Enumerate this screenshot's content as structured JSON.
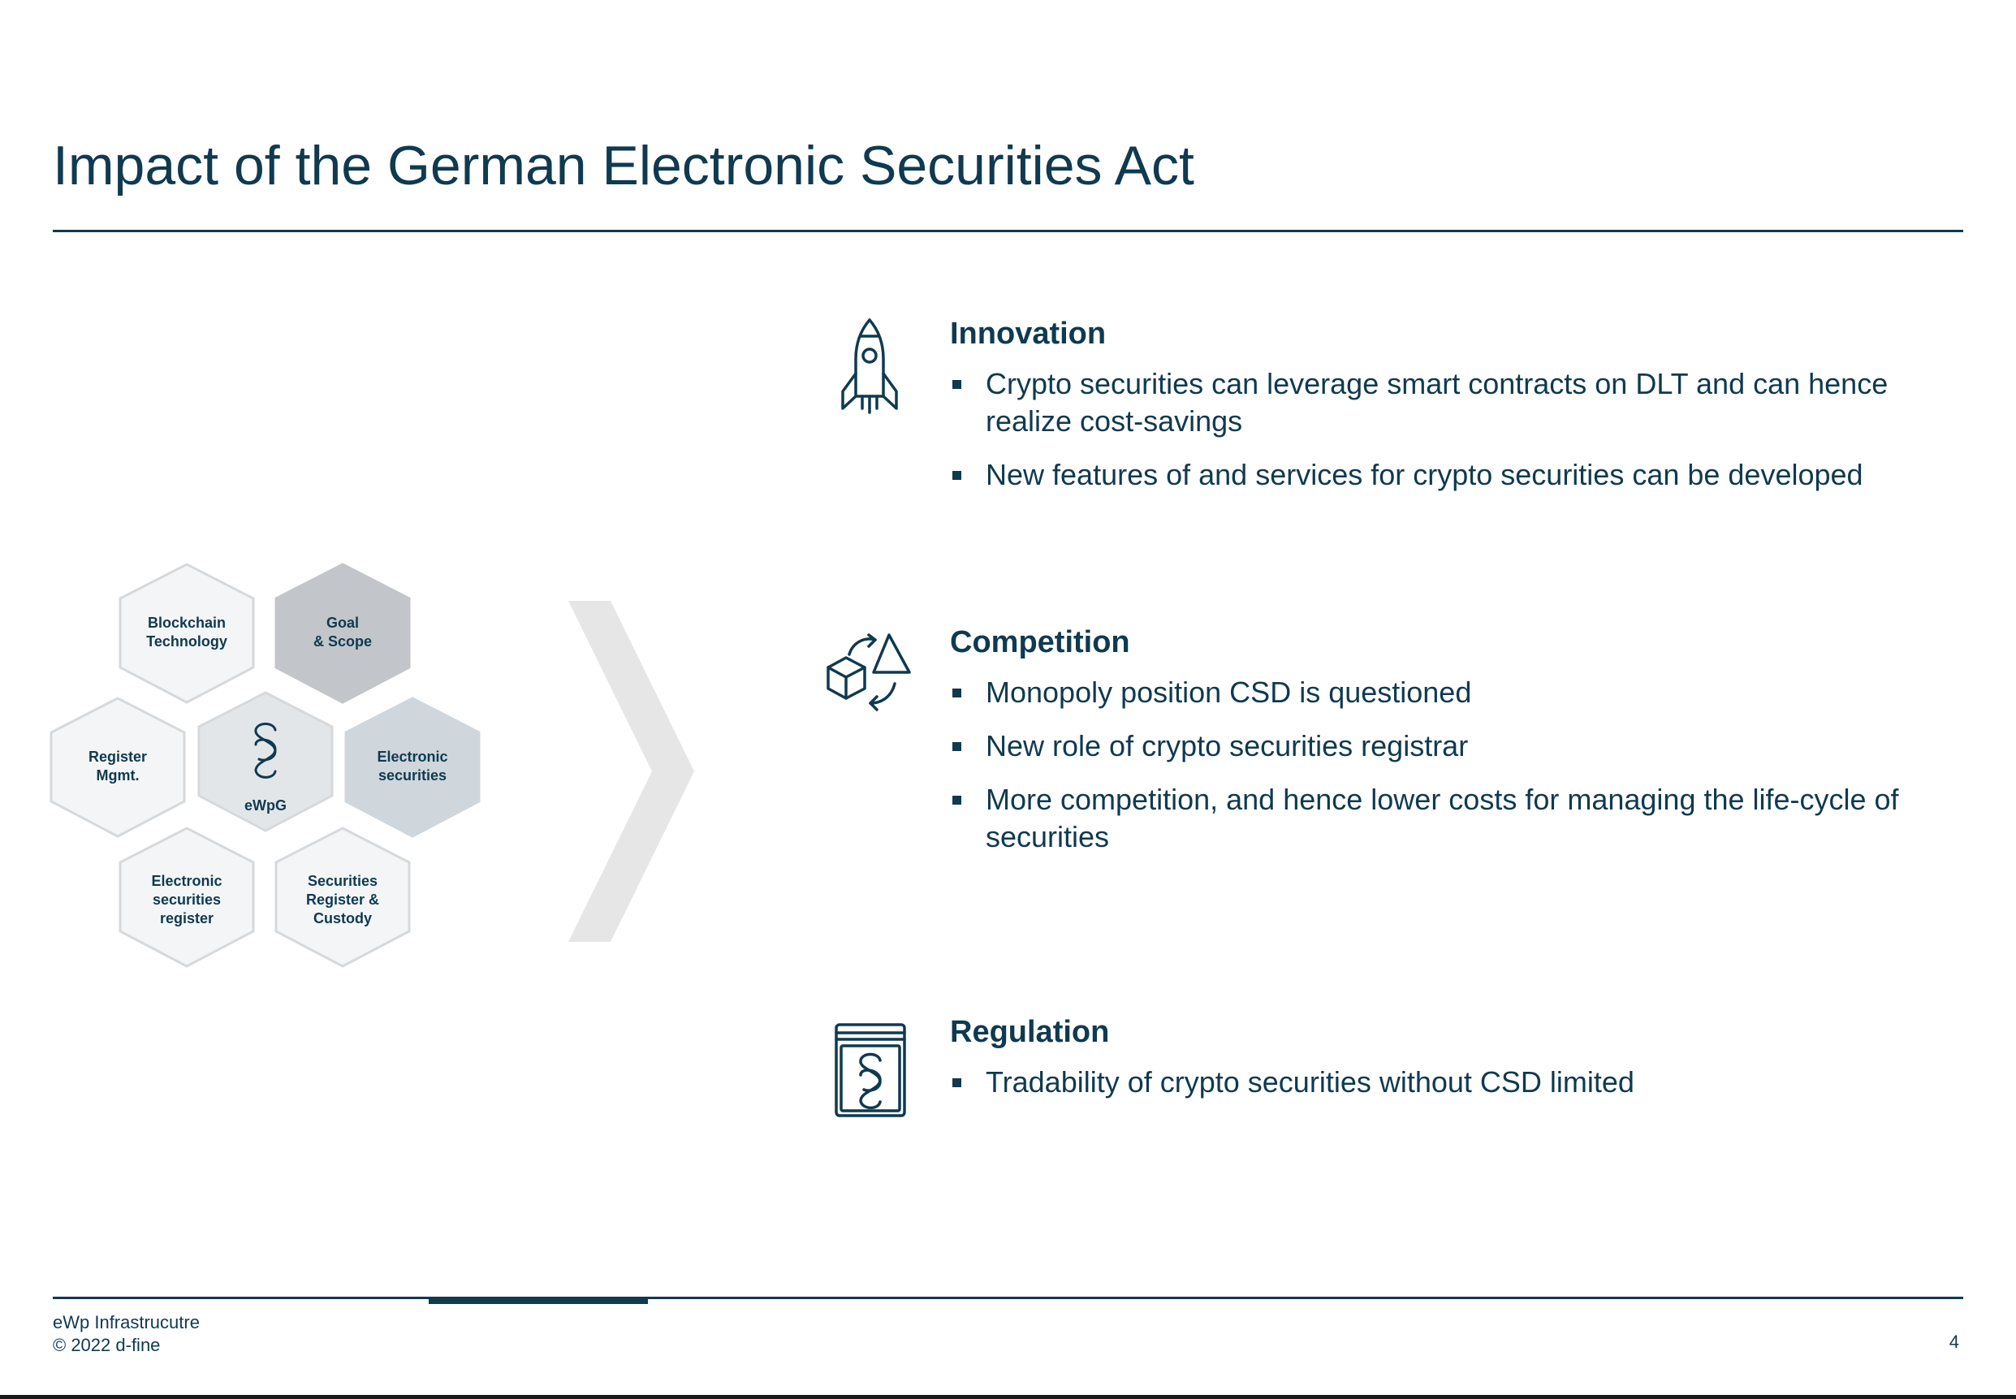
{
  "slide": {
    "title": "Impact of the German Electronic Securities Act",
    "page_number": "4"
  },
  "diagram": {
    "center_label": "eWpG",
    "hexagons": [
      {
        "line1": "Blockchain",
        "line2": "Technology",
        "line3": ""
      },
      {
        "line1": "Goal",
        "line2": "& Scope",
        "line3": ""
      },
      {
        "line1": "Register",
        "line2": "Mgmt.",
        "line3": ""
      },
      {
        "line1": "Electronic",
        "line2": "securities",
        "line3": ""
      },
      {
        "line1": "Electronic",
        "line2": "securities",
        "line3": "register"
      },
      {
        "line1": "Securities",
        "line2": "Register &",
        "line3": "Custody"
      }
    ],
    "colors": {
      "light": "#f4f5f6",
      "mid": "#e3e6e9",
      "dark": "#c2c6ca",
      "blue_grey": "#cfd6dc",
      "stroke": "#d6d9dc"
    }
  },
  "sections": {
    "innovation": {
      "icon": "rocket-icon",
      "heading": "Innovation",
      "bullets": [
        "Crypto securities can leverage smart contracts on DLT and can hence realize cost-savings",
        "New features of and services for crypto securities can be developed"
      ]
    },
    "competition": {
      "icon": "shapes-exchange-icon",
      "heading": "Competition",
      "bullets": [
        "Monopoly position CSD is questioned",
        "New role of crypto securities registrar",
        "More competition, and hence lower costs for managing the life-cycle of securities"
      ]
    },
    "regulation": {
      "icon": "law-book-icon",
      "heading": "Regulation",
      "bullets": [
        "Tradability of crypto securities without CSD limited"
      ]
    }
  },
  "footer": {
    "line1": "eWp Infrastrucutre",
    "line2": "© 2022 d-fine"
  },
  "theme": {
    "primary": "#0f3a4f",
    "arrow": "#e6e6e6"
  }
}
